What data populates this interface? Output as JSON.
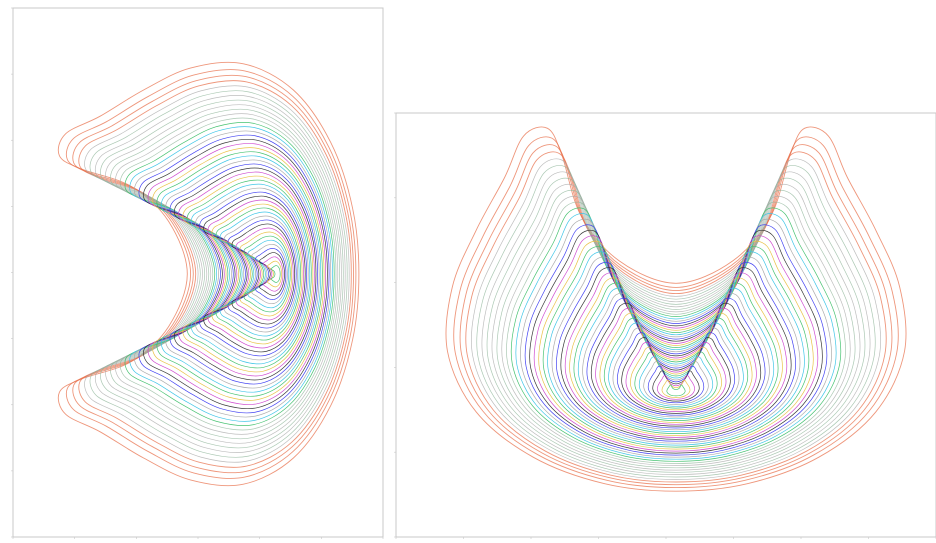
{
  "chart_data": [
    {
      "type": "line",
      "plot_kind": "contour",
      "shape": "crescent opening to the left",
      "title": "",
      "xlabel": "",
      "ylabel": "",
      "grid": false,
      "legend": "none",
      "level_count": 48,
      "colors": [
        "#e8734f",
        "#a8a8a8",
        "#3a3af0",
        "#2e2e2e",
        "#cc44cc",
        "#e8c040",
        "#3ec06a",
        "#37c3e6"
      ],
      "x_ticks": [
        "",
        "",
        "",
        "",
        "",
        "",
        ""
      ],
      "y_ticks": [
        "",
        "",
        "",
        "",
        "",
        "",
        "",
        "",
        ""
      ]
    },
    {
      "type": "line",
      "plot_kind": "contour",
      "shape": "crescent opening upward",
      "title": "",
      "xlabel": "",
      "ylabel": "",
      "grid": false,
      "legend": "none",
      "level_count": 48,
      "colors": [
        "#e8734f",
        "#a8a8a8",
        "#3a3af0",
        "#2e2e2e",
        "#cc44cc",
        "#e8c040",
        "#3ec06a",
        "#37c3e6"
      ],
      "x_ticks": [
        "",
        "",
        "",
        "",
        "",
        "",
        "",
        "",
        ""
      ],
      "y_ticks": [
        "",
        "",
        "",
        "",
        "",
        ""
      ]
    }
  ]
}
